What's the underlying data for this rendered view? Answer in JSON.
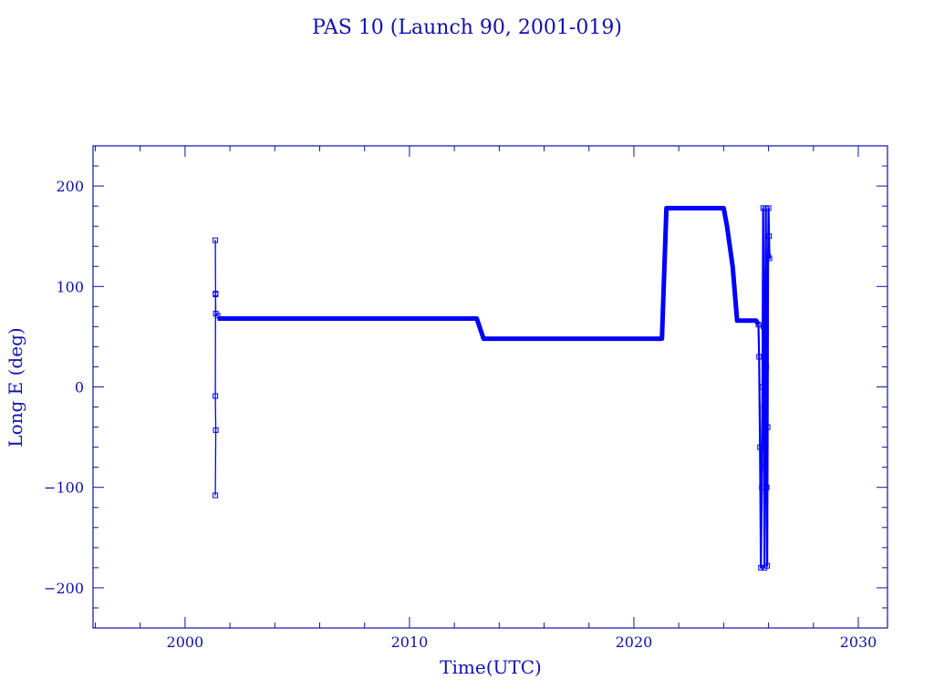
{
  "chart_data": {
    "type": "line",
    "title": "PAS 10 (Launch 90, 2001-019)",
    "xlabel": "Time(UTC)",
    "ylabel": "Long E (deg)",
    "xlim": [
      1995.9,
      2031.3
    ],
    "ylim": [
      -240,
      240
    ],
    "x_ticks": [
      2000,
      2010,
      2020,
      2030
    ],
    "y_ticks": [
      -200,
      -100,
      0,
      100,
      200
    ],
    "grid": false,
    "colors": {
      "axes": "#1010a8",
      "series": "#0000ff",
      "text": "#1010b0"
    },
    "series": [
      {
        "style": "thin-with-markers",
        "x": [
          2001.35,
          2001.37,
          2001.35,
          2001.36,
          2001.35,
          2001.36,
          2001.37,
          2001.45
        ],
        "y": [
          -108,
          -43,
          -9,
          93,
          146,
          92,
          73,
          71
        ]
      },
      {
        "style": "thick",
        "x": [
          2001.45,
          2013.0,
          2013.3,
          2021.25,
          2021.45,
          2024.0,
          2024.15,
          2024.4,
          2024.6,
          2025.45,
          2025.55
        ],
        "y": [
          68,
          68,
          48,
          48,
          178,
          178,
          160,
          120,
          66,
          66,
          62
        ]
      },
      {
        "style": "oscillation",
        "x": [
          2025.55,
          2025.58,
          2025.62,
          2025.66,
          2025.7,
          2025.73,
          2025.76,
          2025.78,
          2025.8,
          2025.82,
          2025.84,
          2025.86,
          2025.88,
          2025.9,
          2025.92,
          2025.94,
          2025.96,
          2025.98,
          2026.0,
          2026.02,
          2026.04
        ],
        "y": [
          62,
          30,
          -60,
          -180,
          -100,
          0,
          178,
          60,
          -20,
          -180,
          -80,
          100,
          178,
          20,
          -100,
          -178,
          -40,
          130,
          178,
          150,
          128
        ]
      }
    ]
  }
}
